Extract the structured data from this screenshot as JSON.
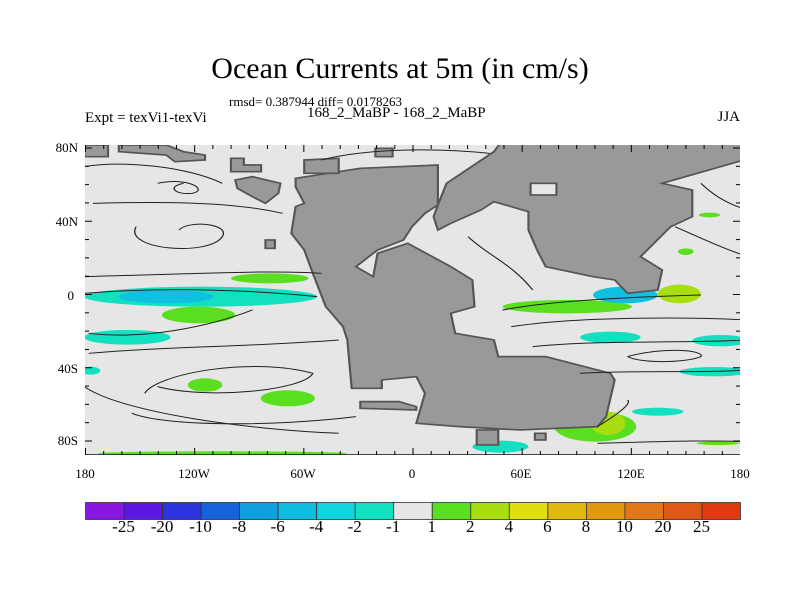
{
  "title": "Ocean Currents at 5m (in cm/s)",
  "stats": "rmsd= 0.387944 diff= 0.0178263",
  "left_label": "Expt = texVi1-texVi",
  "center_label": "168_2_MaBP - 168_2_MaBP",
  "right_label": "JJA",
  "chart_data": {
    "type": "map",
    "title": "Ocean Currents at 5m (in cm/s)",
    "lon_ticks": [
      "180",
      "120W",
      "60W",
      "0",
      "60E",
      "120E",
      "180"
    ],
    "lat_ticks": [
      "80N",
      "40N",
      "0",
      "40S",
      "80S"
    ],
    "lon_range": [
      -180,
      180
    ],
    "lat_range": [
      -90,
      90
    ],
    "colorbar": {
      "levels": [
        "-25",
        "-20",
        "-10",
        "-8",
        "-6",
        "-4",
        "-2",
        "-1",
        "1",
        "2",
        "4",
        "6",
        "8",
        "10",
        "20",
        "25"
      ],
      "colors": [
        "#8a17e0",
        "#5a18e0",
        "#2c35dc",
        "#1662dc",
        "#10a0e0",
        "#10bce0",
        "#10d4e0",
        "#12e0c0",
        "#e6e6e6",
        "#5ade20",
        "#a8de10",
        "#dede10",
        "#e0b810",
        "#e09810",
        "#e07818",
        "#e05818",
        "#e03a10"
      ]
    },
    "land_color": "#999999",
    "ocean_color": "#e6e6e6"
  }
}
